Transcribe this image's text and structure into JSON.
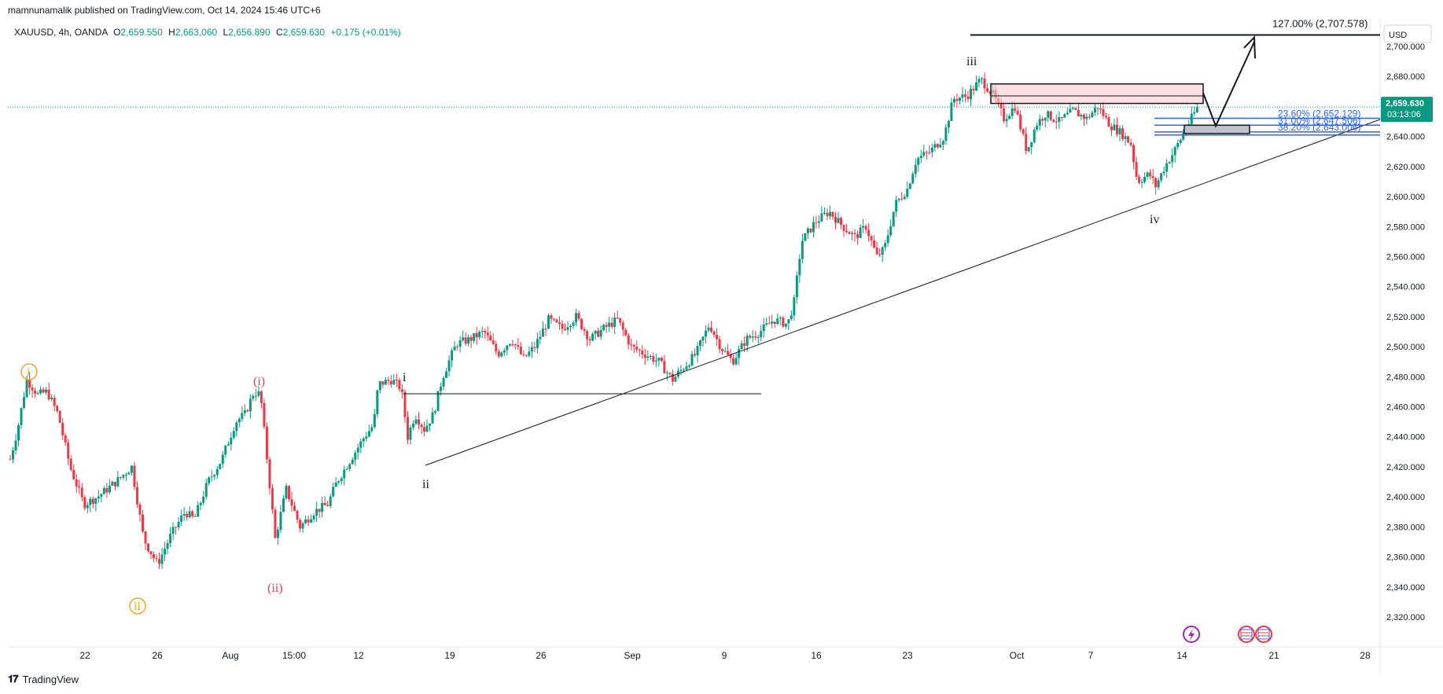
{
  "header": {
    "published": "mamnunamalik published on TradingView.com, Oct 14, 2024 15:46 UTC+6"
  },
  "symbol": {
    "name": "XAUUSD, 4h, OANDA",
    "o_label": "O",
    "o": "2,659.550",
    "h_label": "H",
    "h": "2,663.060",
    "l_label": "L",
    "l": "2,656.890",
    "c_label": "C",
    "c": "2,659.630",
    "change": "+0.175 (+0.01%)"
  },
  "currency": "USD",
  "price_tag": {
    "price": "2,659.630",
    "countdown": "03:13:06"
  },
  "colors": {
    "up": "#089981",
    "down": "#f23645",
    "accent": "#2962ff",
    "line": "#131722"
  },
  "fib_labels": {
    "fib127": "127.00% (2,707.578)",
    "fib236": "23.60% (2,652.129)",
    "fib310": "31.00% (2,647.506)",
    "fib382": "38.20% (2,643.006)"
  },
  "waves": {
    "orange_i": "i",
    "orange_ii": "ii",
    "red_i": "(i)",
    "red_ii": "(ii)",
    "black_i": "i",
    "black_ii": "ii",
    "black_iii": "iii",
    "black_iv": "iv"
  },
  "footer": {
    "brand": "TradingView"
  },
  "chart_data": {
    "type": "candlestick",
    "symbol": "XAUUSD",
    "timeframe": "4h",
    "ylim": [
      2310,
      2720
    ],
    "y_ticks": [
      "2,700.000",
      "2,680.000",
      "2,660.000",
      "2,640.000",
      "2,620.000",
      "2,600.000",
      "2,580.000",
      "2,560.000",
      "2,540.000",
      "2,520.000",
      "2,500.000",
      "2,480.000",
      "2,460.000",
      "2,440.000",
      "2,420.000",
      "2,400.000",
      "2,380.000",
      "2,360.000",
      "2,340.000",
      "2,320.000"
    ],
    "x_ticks": [
      "22",
      "26",
      "Aug",
      "15:00",
      "12",
      "19",
      "26",
      "Sep",
      "9",
      "16",
      "23",
      "Oct",
      "7",
      "14",
      "21",
      "28"
    ],
    "price_path": [
      [
        0,
        2425
      ],
      [
        8,
        2445
      ],
      [
        18,
        2478
      ],
      [
        30,
        2468
      ],
      [
        40,
        2470
      ],
      [
        52,
        2455
      ],
      [
        65,
        2420
      ],
      [
        80,
        2395
      ],
      [
        95,
        2400
      ],
      [
        115,
        2410
      ],
      [
        132,
        2420
      ],
      [
        145,
        2372
      ],
      [
        160,
        2355
      ],
      [
        175,
        2375
      ],
      [
        190,
        2390
      ],
      [
        200,
        2385
      ],
      [
        215,
        2410
      ],
      [
        230,
        2425
      ],
      [
        245,
        2450
      ],
      [
        255,
        2455
      ],
      [
        265,
        2470
      ],
      [
        272,
        2468
      ],
      [
        280,
        2420
      ],
      [
        288,
        2372
      ],
      [
        300,
        2405
      ],
      [
        315,
        2380
      ],
      [
        330,
        2390
      ],
      [
        345,
        2395
      ],
      [
        355,
        2410
      ],
      [
        370,
        2425
      ],
      [
        385,
        2440
      ],
      [
        395,
        2448
      ],
      [
        400,
        2475
      ],
      [
        415,
        2478
      ],
      [
        425,
        2472
      ],
      [
        432,
        2440
      ],
      [
        440,
        2455
      ],
      [
        450,
        2445
      ],
      [
        460,
        2455
      ],
      [
        470,
        2480
      ],
      [
        478,
        2492
      ],
      [
        485,
        2502
      ],
      [
        500,
        2505
      ],
      [
        515,
        2510
      ],
      [
        530,
        2495
      ],
      [
        545,
        2505
      ],
      [
        558,
        2492
      ],
      [
        570,
        2500
      ],
      [
        585,
        2518
      ],
      [
        600,
        2512
      ],
      [
        615,
        2520
      ],
      [
        630,
        2505
      ],
      [
        645,
        2512
      ],
      [
        660,
        2518
      ],
      [
        675,
        2500
      ],
      [
        690,
        2495
      ],
      [
        705,
        2490
      ],
      [
        720,
        2478
      ],
      [
        730,
        2485
      ],
      [
        745,
        2495
      ],
      [
        760,
        2515
      ],
      [
        772,
        2500
      ],
      [
        785,
        2490
      ],
      [
        800,
        2505
      ],
      [
        815,
        2510
      ],
      [
        830,
        2518
      ],
      [
        845,
        2515
      ],
      [
        852,
        2530
      ],
      [
        860,
        2570
      ],
      [
        875,
        2583
      ],
      [
        890,
        2590
      ],
      [
        905,
        2580
      ],
      [
        918,
        2573
      ],
      [
        930,
        2580
      ],
      [
        942,
        2560
      ],
      [
        950,
        2565
      ],
      [
        962,
        2595
      ],
      [
        975,
        2605
      ],
      [
        985,
        2625
      ],
      [
        1000,
        2630
      ],
      [
        1015,
        2640
      ],
      [
        1025,
        2665
      ],
      [
        1040,
        2667
      ],
      [
        1055,
        2678
      ],
      [
        1068,
        2668
      ],
      [
        1080,
        2652
      ],
      [
        1092,
        2660
      ],
      [
        1105,
        2630
      ],
      [
        1115,
        2648
      ],
      [
        1125,
        2655
      ],
      [
        1140,
        2650
      ],
      [
        1155,
        2657
      ],
      [
        1170,
        2652
      ],
      [
        1182,
        2660
      ],
      [
        1195,
        2648
      ],
      [
        1208,
        2642
      ],
      [
        1218,
        2635
      ],
      [
        1225,
        2610
      ],
      [
        1238,
        2615
      ],
      [
        1245,
        2607
      ],
      [
        1255,
        2620
      ],
      [
        1265,
        2630
      ],
      [
        1275,
        2642
      ],
      [
        1282,
        2650
      ],
      [
        1290,
        2659
      ]
    ],
    "fib_levels": [
      {
        "label": "127.00%",
        "price": 2707.578
      },
      {
        "label": "23.60%",
        "price": 2652.129
      },
      {
        "label": "31.00%",
        "price": 2647.506
      },
      {
        "label": "38.20%",
        "price": 2643.006
      }
    ],
    "last_price": 2659.63
  }
}
